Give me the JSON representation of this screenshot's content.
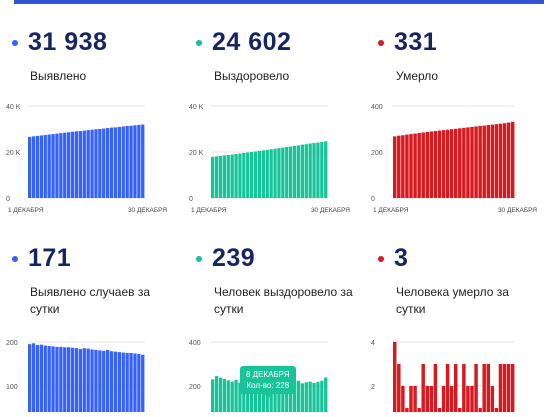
{
  "colors": {
    "blue": "#3562ff",
    "green": "#17c49a",
    "red": "#d71920",
    "navy": "#152463"
  },
  "panels": [
    {
      "id": "detected-total",
      "number": "31 938",
      "label": "Выявлено",
      "color": "#3562ff",
      "chart_data": {
        "type": "bar",
        "ylim": [
          0,
          40000
        ],
        "ticks": [
          "0",
          "20 K",
          "40 K"
        ],
        "tick_values": [
          0,
          20000,
          40000
        ],
        "xlabel_start": "1 ДЕКАБРЯ",
        "xlabel_end": "30 ДЕКАБРЯ",
        "values": [
          26600,
          26800,
          27000,
          27200,
          27400,
          27600,
          27800,
          28000,
          28200,
          28400,
          28600,
          28800,
          29000,
          29100,
          29300,
          29500,
          29700,
          29900,
          30000,
          30200,
          30400,
          30600,
          30700,
          30900,
          31100,
          31300,
          31400,
          31600,
          31800,
          31938
        ]
      }
    },
    {
      "id": "recovered-total",
      "number": "24 602",
      "label": "Выздоровело",
      "color": "#17c49a",
      "chart_data": {
        "type": "bar",
        "ylim": [
          0,
          40000
        ],
        "ticks": [
          "0",
          "20 K",
          "40 K"
        ],
        "tick_values": [
          0,
          20000,
          40000
        ],
        "xlabel_start": "1 ДЕКАБРЯ",
        "xlabel_end": "30 ДЕКАБРЯ",
        "values": [
          17900,
          18100,
          18300,
          18500,
          18700,
          18900,
          19100,
          19300,
          19600,
          19800,
          20000,
          20200,
          20500,
          20700,
          20900,
          21200,
          21400,
          21700,
          21900,
          22200,
          22400,
          22700,
          22900,
          23200,
          23400,
          23700,
          23900,
          24100,
          24400,
          24602
        ]
      }
    },
    {
      "id": "died-total",
      "number": "331",
      "label": "Умерло",
      "color": "#d71920",
      "chart_data": {
        "type": "bar",
        "ylim": [
          0,
          400
        ],
        "ticks": [
          "0",
          "200",
          "400"
        ],
        "tick_values": [
          0,
          200,
          400
        ],
        "xlabel_start": "1 ДЕКАБРЯ",
        "xlabel_end": "30 ДЕКАБРЯ",
        "values": [
          268,
          271,
          273,
          276,
          278,
          280,
          283,
          285,
          287,
          289,
          291,
          293,
          295,
          297,
          299,
          301,
          303,
          305,
          307,
          309,
          311,
          313,
          315,
          317,
          319,
          321,
          323,
          325,
          328,
          331
        ]
      }
    },
    {
      "id": "detected-daily",
      "number": "171",
      "label": "Выявлено случаев за сутки",
      "color": "#3562ff",
      "chart_data": {
        "type": "bar",
        "ylim": [
          0,
          200
        ],
        "ticks": [
          "100",
          "200"
        ],
        "tick_values": [
          100,
          200
        ],
        "values": [
          195,
          197,
          193,
          194,
          192,
          191,
          190,
          189,
          189,
          188,
          188,
          187,
          186,
          184,
          186,
          185,
          183,
          182,
          181,
          180,
          182,
          179,
          178,
          177,
          176,
          175,
          175,
          174,
          173,
          171
        ]
      }
    },
    {
      "id": "recovered-daily",
      "number": "239",
      "label": "Человек выздоровело за сутки",
      "color": "#17c49a",
      "chart_data": {
        "type": "bar",
        "ylim": [
          0,
          400
        ],
        "ticks": [
          "200",
          "400"
        ],
        "tick_values": [
          200,
          400
        ],
        "values": [
          230,
          245,
          238,
          232,
          226,
          220,
          228,
          215,
          222,
          218,
          220,
          225,
          217,
          222,
          221,
          214,
          220,
          218,
          213,
          222,
          215,
          219,
          224,
          212,
          217,
          220,
          214,
          219,
          224,
          239
        ],
        "tooltip": {
          "date": "8 ДЕКАБРЯ",
          "text": "Кол-во: 228",
          "index": 6
        }
      }
    },
    {
      "id": "died-daily",
      "number": "3",
      "label": "Человека умерло за сутки",
      "color": "#d71920",
      "chart_data": {
        "type": "bar",
        "ylim": [
          0,
          4
        ],
        "ticks": [
          "2",
          "4"
        ],
        "tick_values": [
          2,
          4
        ],
        "values": [
          4,
          3,
          2,
          1,
          2,
          2,
          1,
          3,
          2,
          2,
          3,
          1,
          2,
          3,
          2,
          3,
          1,
          3,
          2,
          2,
          3,
          1,
          3,
          3,
          2,
          1,
          3,
          3,
          3,
          3
        ]
      }
    }
  ]
}
